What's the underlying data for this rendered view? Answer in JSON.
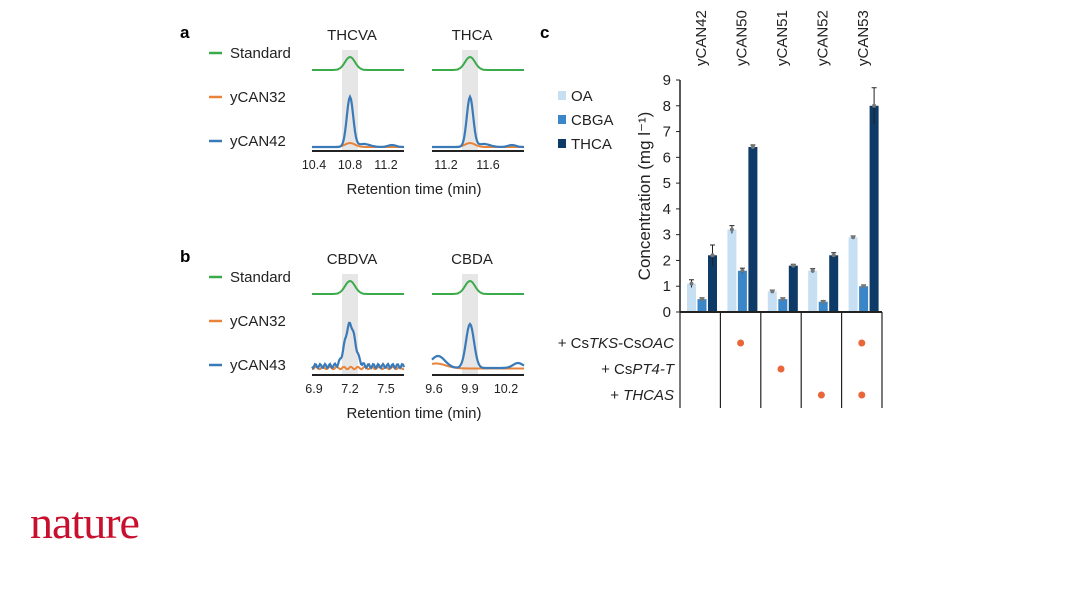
{
  "panels": {
    "a": {
      "letter": "a",
      "legend": [
        "Standard",
        "yCAN32",
        "yCAN42"
      ],
      "plots": [
        {
          "title": "THCVA",
          "ticks": [
            "10.4",
            "10.8",
            "11.2"
          ]
        },
        {
          "title": "THCA",
          "ticks": [
            "11.2",
            "11.6"
          ]
        }
      ],
      "xlabel": "Retention time (min)"
    },
    "b": {
      "letter": "b",
      "legend": [
        "Standard",
        "yCAN32",
        "yCAN43"
      ],
      "plots": [
        {
          "title": "CBDVA",
          "ticks": [
            "6.9",
            "7.2",
            "7.5"
          ]
        },
        {
          "title": "CBDA",
          "ticks": [
            "9.6",
            "9.9",
            "10.2"
          ]
        }
      ],
      "xlabel": "Retention time (min)"
    },
    "c": {
      "letter": "c"
    }
  },
  "colors": {
    "standard": "#3aaa4a",
    "ycan32": "#e8833a",
    "ycan_main": "#3a7ab8",
    "oa": "#c6dff2",
    "cbga": "#3a86c8",
    "thca": "#0d3a66",
    "dot": "#e8663a"
  },
  "chart_data": {
    "type": "bar",
    "categories": [
      "yCAN42",
      "yCAN50",
      "yCAN51",
      "yCAN52",
      "yCAN53"
    ],
    "series": [
      {
        "name": "OA",
        "values": [
          1.1,
          3.2,
          0.8,
          1.6,
          2.9
        ],
        "errors": [
          0.15,
          0.15,
          0.05,
          0.08,
          0.05
        ]
      },
      {
        "name": "CBGA",
        "values": [
          0.5,
          1.6,
          0.5,
          0.4,
          1.0
        ],
        "errors": [
          0.05,
          0.1,
          0.05,
          0.04,
          0.05
        ]
      },
      {
        "name": "THCA",
        "values": [
          2.2,
          6.4,
          1.8,
          2.2,
          8.0
        ],
        "errors": [
          0.4,
          0.08,
          0.05,
          0.1,
          0.7
        ]
      }
    ],
    "ylabel": "Concentration (mg l⁻¹)",
    "ylim": [
      0,
      9
    ],
    "yticks": [
      "0",
      "1",
      "2",
      "3",
      "4",
      "5",
      "6",
      "7",
      "8",
      "9"
    ],
    "legend_placement": "top-left",
    "genotype_rows": [
      {
        "pre": "+ Cs",
        "ital": "TKS",
        "mid": "-Cs",
        "ital2": "OAC",
        "present": [
          false,
          true,
          false,
          false,
          true
        ]
      },
      {
        "pre": "+ Cs",
        "ital": "PT4-T",
        "mid": "",
        "ital2": "",
        "present": [
          false,
          false,
          true,
          false,
          false
        ]
      },
      {
        "pre": "+ ",
        "ital": "THCAS",
        "mid": "",
        "ital2": "",
        "present": [
          false,
          false,
          false,
          true,
          true
        ]
      }
    ]
  },
  "footer": {
    "logo": "nature"
  }
}
